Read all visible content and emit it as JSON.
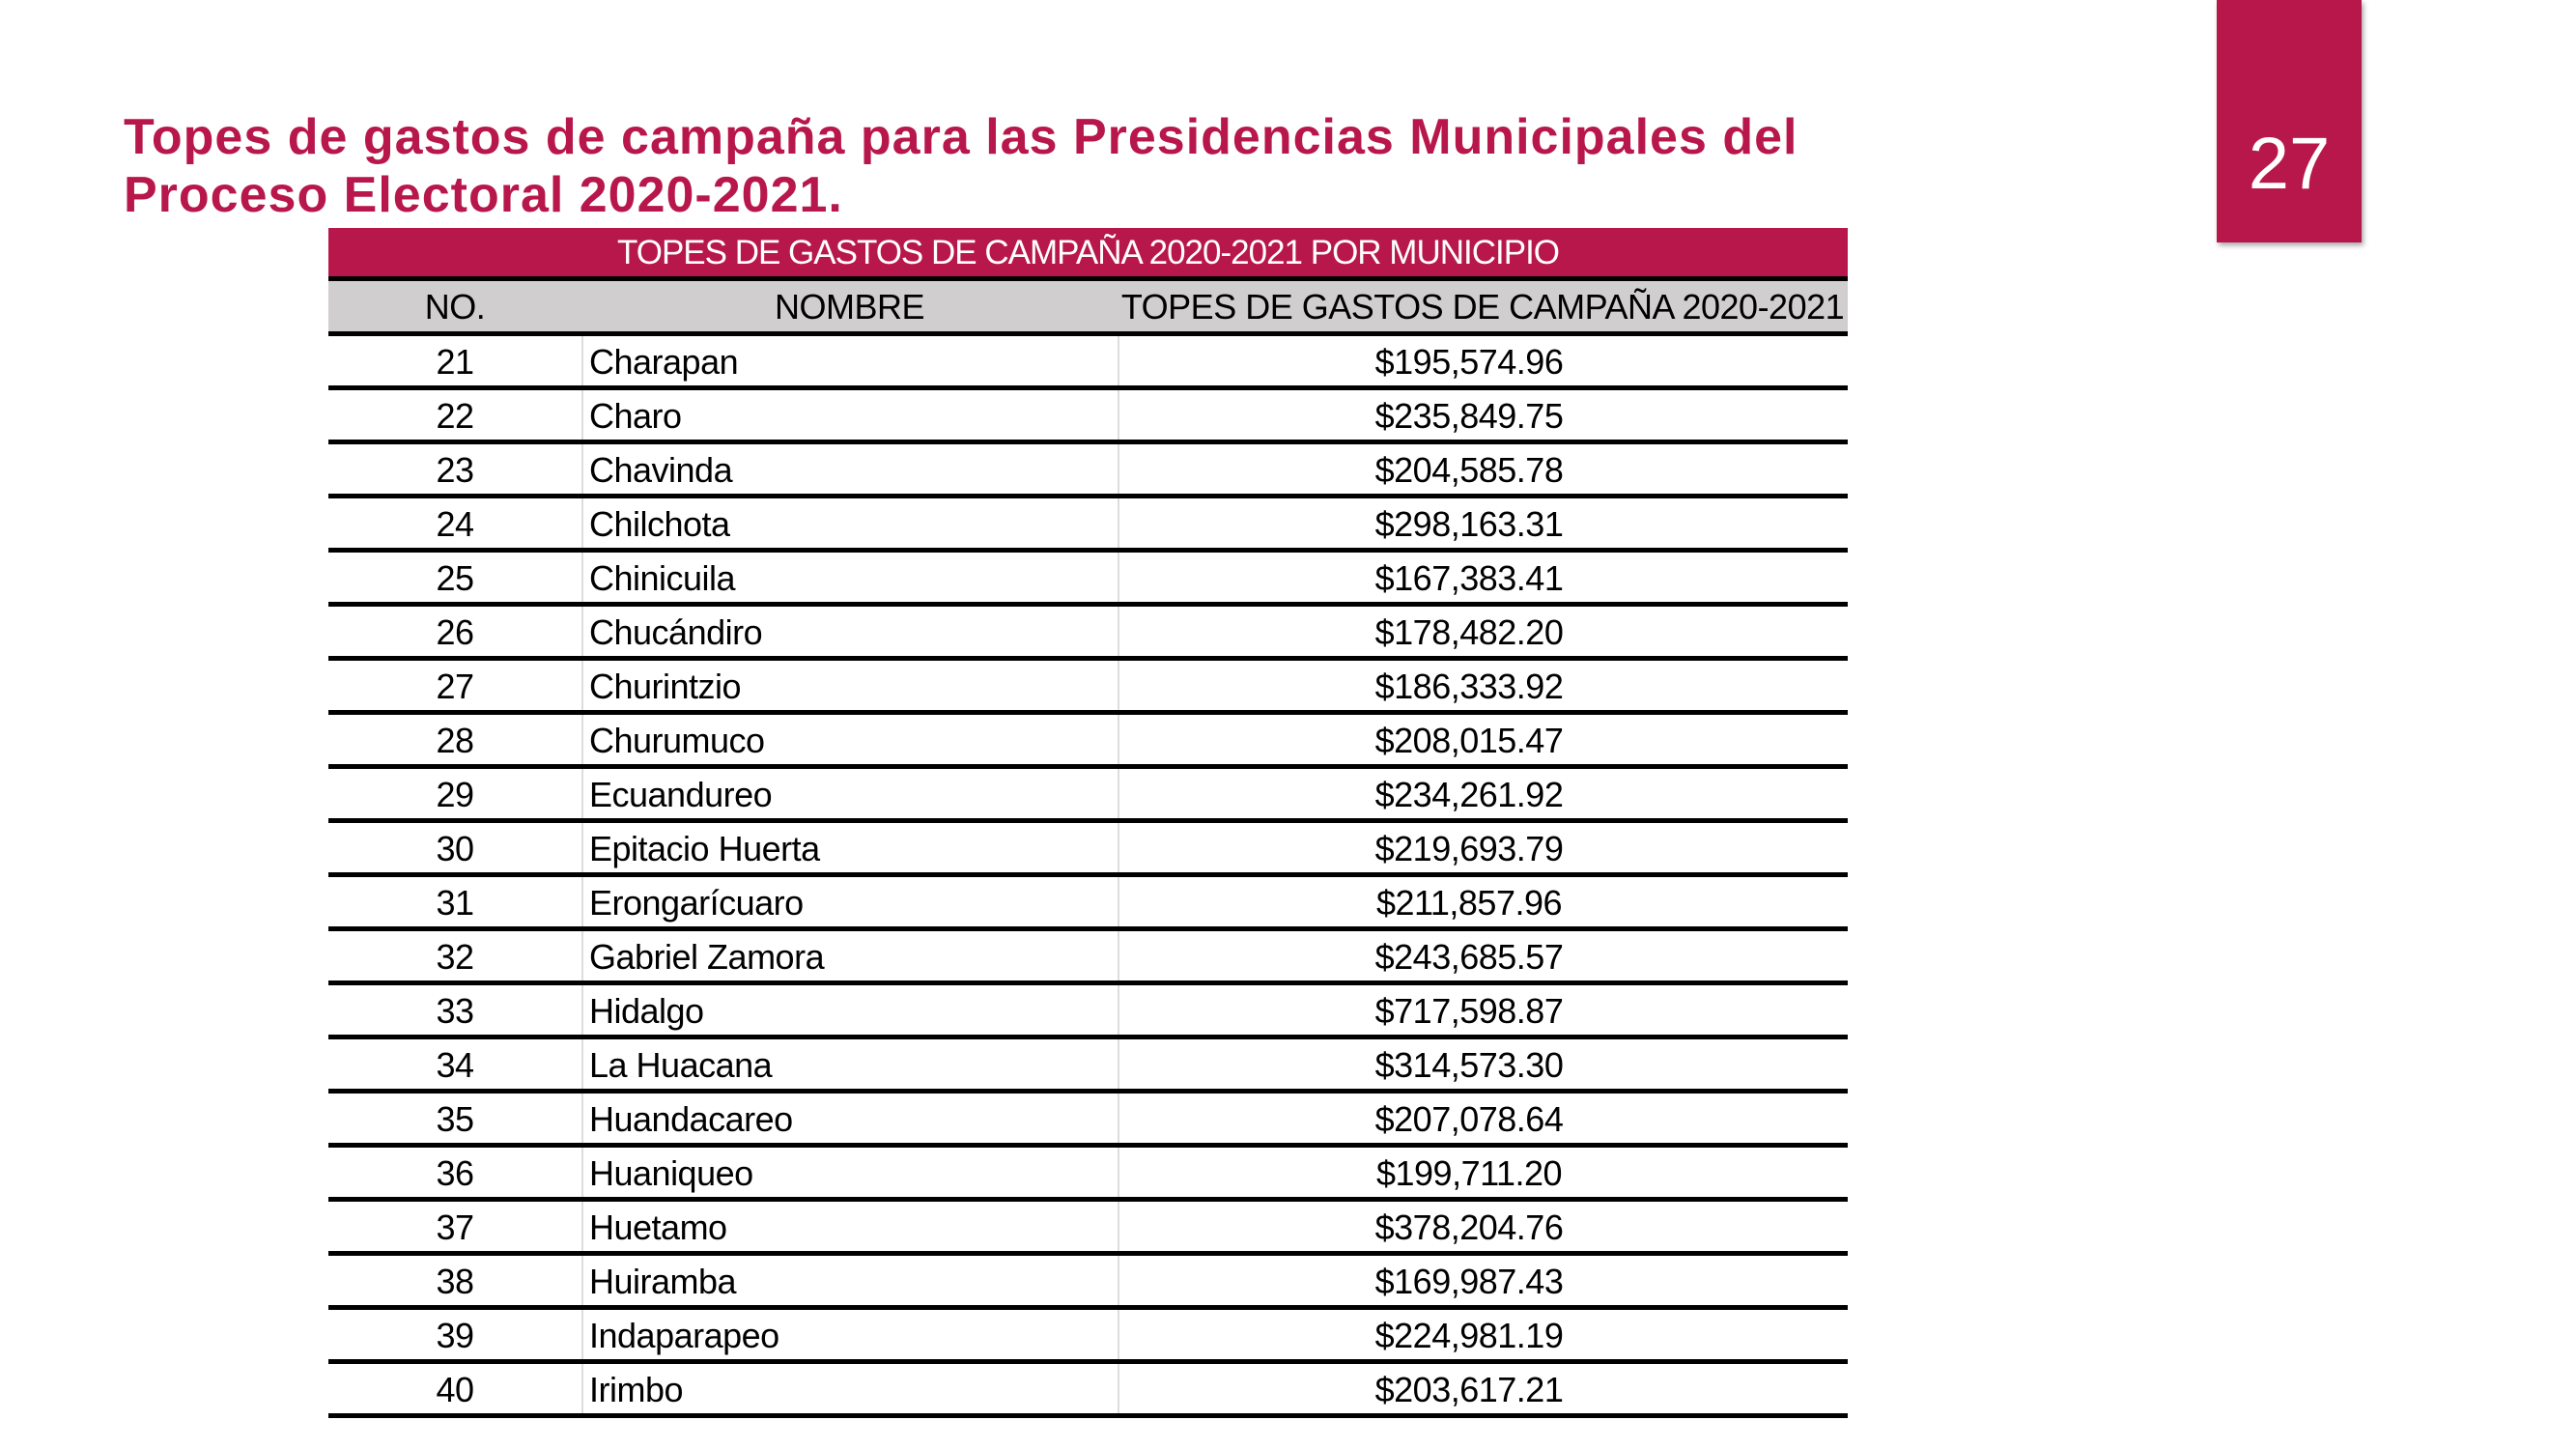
{
  "slide": {
    "title": "Topes de gastos de campaña para las Presidencias Municipales del Proceso Electoral 2020-2021.",
    "page_number": "27",
    "accent_color": "#b8174c"
  },
  "table": {
    "caption": "TOPES DE GASTOS DE CAMPAÑA 2020-2021 POR MUNICIPIO",
    "headers": [
      "NO.",
      "NOMBRE",
      "TOPES DE GASTOS DE CAMPAÑA 2020-2021"
    ],
    "rows": [
      [
        "21",
        "Charapan",
        "$195,574.96"
      ],
      [
        "22",
        "Charo",
        "$235,849.75"
      ],
      [
        "23",
        "Chavinda",
        "$204,585.78"
      ],
      [
        "24",
        "Chilchota",
        "$298,163.31"
      ],
      [
        "25",
        "Chinicuila",
        "$167,383.41"
      ],
      [
        "26",
        "Chucándiro",
        "$178,482.20"
      ],
      [
        "27",
        "Churintzio",
        "$186,333.92"
      ],
      [
        "28",
        "Churumuco",
        "$208,015.47"
      ],
      [
        "29",
        "Ecuandureo",
        "$234,261.92"
      ],
      [
        "30",
        "Epitacio Huerta",
        "$219,693.79"
      ],
      [
        "31",
        "Erongarícuaro",
        "$211,857.96"
      ],
      [
        "32",
        "Gabriel Zamora",
        "$243,685.57"
      ],
      [
        "33",
        "Hidalgo",
        "$717,598.87"
      ],
      [
        "34",
        "La Huacana",
        "$314,573.30"
      ],
      [
        "35",
        "Huandacareo",
        "$207,078.64"
      ],
      [
        "36",
        "Huaniqueo",
        "$199,711.20"
      ],
      [
        "37",
        "Huetamo",
        "$378,204.76"
      ],
      [
        "38",
        "Huiramba",
        "$169,987.43"
      ],
      [
        "39",
        "Indaparapeo",
        "$224,981.19"
      ],
      [
        "40",
        "Irimbo",
        "$203,617.21"
      ]
    ]
  }
}
